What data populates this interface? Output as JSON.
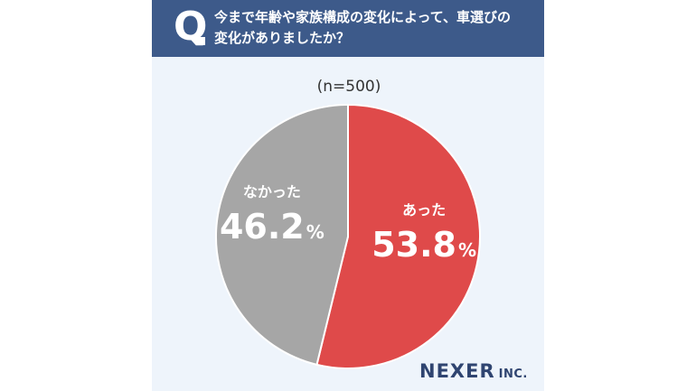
{
  "question": {
    "marker": "Q",
    "lines": [
      "今まで年齢や家族構成の変化によって、車選びの",
      "変化がありましたか？"
    ]
  },
  "chart_data": {
    "type": "pie",
    "sample_label": "(n=500)",
    "slices": [
      {
        "label": "あった",
        "value": 53.8,
        "display": "53.8",
        "unit": "%",
        "color": "#df4a4a"
      },
      {
        "label": "なかった",
        "value": 46.2,
        "display": "46.2",
        "unit": "%",
        "color": "#a6a6a6"
      }
    ],
    "start_angle_deg": 0,
    "direction": "clockwise"
  },
  "brand": {
    "name": "NEXER",
    "suffix": "INC."
  },
  "colors": {
    "banner": "#3d5a8a",
    "background": "#eef4fb",
    "logo": "#2f4470"
  }
}
